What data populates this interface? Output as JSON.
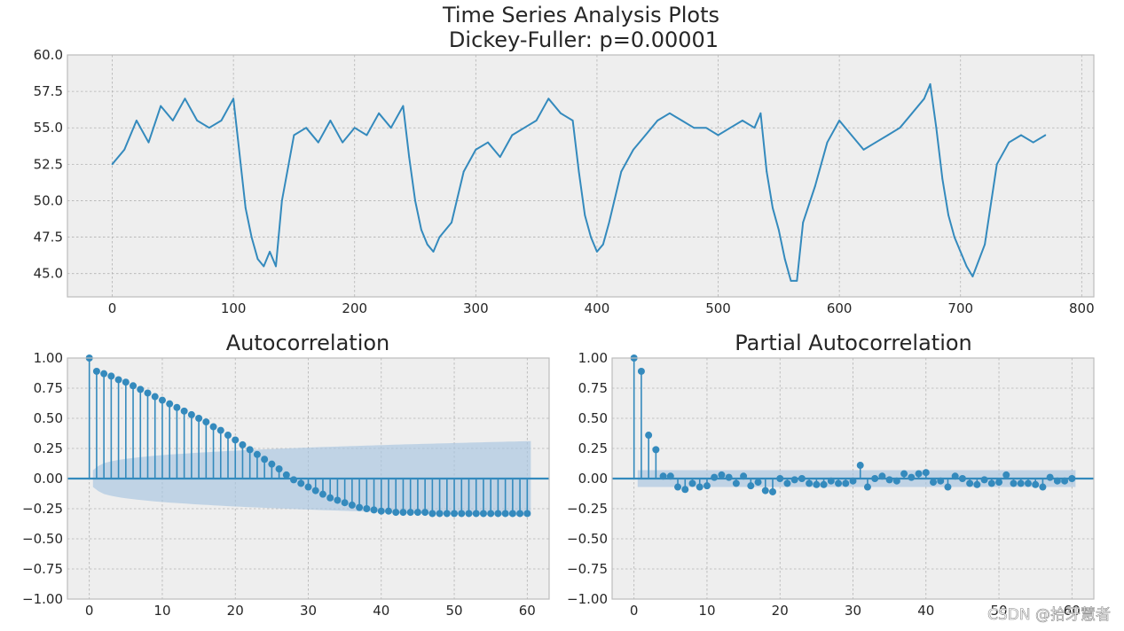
{
  "figure": {
    "suptitle_line1": "Time Series Analysis Plots",
    "suptitle_line2": "Dickey-Fuller: p=0.00001",
    "watermark": "CSDN @拾牙慧者"
  },
  "colors": {
    "line": "#348ABD",
    "axes_bg": "#EEEEEE",
    "grid": "#B2B2B2",
    "band": "#A7C5E0",
    "spine": "#BCBCBC"
  },
  "chart_data": [
    {
      "type": "line",
      "title": "",
      "xlabel": "",
      "ylabel": "",
      "xlim": [
        -37,
        810
      ],
      "ylim": [
        43.4,
        60.0
      ],
      "xticks": [
        0,
        100,
        200,
        300,
        400,
        500,
        600,
        700,
        800
      ],
      "yticks": [
        45.0,
        47.5,
        50.0,
        52.5,
        55.0,
        57.5,
        60.0
      ],
      "ytick_labels": [
        "45.0",
        "47.5",
        "50.0",
        "52.5",
        "55.0",
        "57.5",
        "60.0"
      ],
      "grid": true,
      "series": [
        {
          "x": [
            0,
            10,
            20,
            30,
            40,
            50,
            60,
            70,
            80,
            90,
            100,
            110,
            115,
            120,
            125,
            130,
            135,
            140,
            150,
            160,
            170,
            180,
            190,
            200,
            210,
            220,
            230,
            240,
            245,
            250,
            255,
            260,
            265,
            270,
            280,
            290,
            300,
            310,
            320,
            330,
            340,
            350,
            360,
            370,
            380,
            385,
            390,
            395,
            400,
            405,
            410,
            420,
            430,
            440,
            450,
            460,
            470,
            480,
            490,
            500,
            510,
            520,
            530,
            535,
            540,
            545,
            550,
            555,
            560,
            565,
            570,
            580,
            590,
            600,
            610,
            620,
            630,
            640,
            650,
            660,
            670,
            675,
            680,
            685,
            690,
            695,
            700,
            705,
            710,
            720,
            730,
            740,
            750,
            760,
            770
          ],
          "y": [
            52.5,
            53.5,
            55.5,
            54.0,
            56.5,
            55.5,
            57.0,
            55.5,
            55.0,
            55.5,
            57.0,
            49.5,
            47.5,
            46.0,
            45.5,
            46.5,
            45.5,
            50.0,
            54.5,
            55.0,
            54.0,
            55.5,
            54.0,
            55.0,
            54.5,
            56.0,
            55.0,
            56.5,
            53.0,
            50.0,
            48.0,
            47.0,
            46.5,
            47.5,
            48.5,
            52.0,
            53.5,
            54.0,
            53.0,
            54.5,
            55.0,
            55.5,
            57.0,
            56.0,
            55.5,
            52.0,
            49.0,
            47.5,
            46.5,
            47.0,
            48.5,
            52.0,
            53.5,
            54.5,
            55.5,
            56.0,
            55.5,
            55.0,
            55.0,
            54.5,
            55.0,
            55.5,
            55.0,
            56.0,
            52.0,
            49.5,
            48.0,
            46.0,
            44.5,
            44.5,
            48.5,
            51.0,
            54.0,
            55.5,
            54.5,
            53.5,
            54.0,
            54.5,
            55.0,
            56.0,
            57.0,
            58.0,
            55.0,
            51.5,
            49.0,
            47.5,
            46.5,
            45.5,
            44.8,
            47.0,
            52.5,
            54.0,
            54.5,
            54.0,
            54.5
          ]
        }
      ]
    },
    {
      "type": "stem",
      "title": "Autocorrelation",
      "xlabel": "",
      "ylabel": "",
      "xlim": [
        -3,
        63
      ],
      "ylim": [
        -1.0,
        1.0
      ],
      "xticks": [
        0,
        10,
        20,
        30,
        40,
        50,
        60
      ],
      "yticks": [
        -1.0,
        -0.75,
        -0.5,
        -0.25,
        0.0,
        0.25,
        0.5,
        0.75,
        1.0
      ],
      "ytick_labels": [
        "−1.00",
        "−0.75",
        "−0.50",
        "−0.25",
        "0.00",
        "0.25",
        "0.50",
        "0.75",
        "1.00"
      ],
      "grid": true,
      "confidence_band_lag1": 0.07,
      "confidence_band_lag60": 0.31,
      "series": [
        {
          "x": [
            0,
            1,
            2,
            3,
            4,
            5,
            6,
            7,
            8,
            9,
            10,
            11,
            12,
            13,
            14,
            15,
            16,
            17,
            18,
            19,
            20,
            21,
            22,
            23,
            24,
            25,
            26,
            27,
            28,
            29,
            30,
            31,
            32,
            33,
            34,
            35,
            36,
            37,
            38,
            39,
            40,
            41,
            42,
            43,
            44,
            45,
            46,
            47,
            48,
            49,
            50,
            51,
            52,
            53,
            54,
            55,
            56,
            57,
            58,
            59,
            60
          ],
          "y": [
            1.0,
            0.89,
            0.87,
            0.85,
            0.82,
            0.8,
            0.77,
            0.74,
            0.71,
            0.68,
            0.65,
            0.62,
            0.59,
            0.56,
            0.53,
            0.5,
            0.47,
            0.43,
            0.4,
            0.36,
            0.32,
            0.28,
            0.24,
            0.2,
            0.16,
            0.12,
            0.08,
            0.03,
            -0.01,
            -0.04,
            -0.07,
            -0.1,
            -0.13,
            -0.16,
            -0.18,
            -0.2,
            -0.22,
            -0.24,
            -0.25,
            -0.26,
            -0.27,
            -0.27,
            -0.28,
            -0.28,
            -0.28,
            -0.28,
            -0.28,
            -0.29,
            -0.29,
            -0.29,
            -0.29,
            -0.29,
            -0.29,
            -0.29,
            -0.29,
            -0.29,
            -0.29,
            -0.29,
            -0.29,
            -0.29,
            -0.29
          ]
        }
      ]
    },
    {
      "type": "stem",
      "title": "Partial Autocorrelation",
      "xlabel": "",
      "ylabel": "",
      "xlim": [
        -3,
        63
      ],
      "ylim": [
        -1.0,
        1.0
      ],
      "xticks": [
        0,
        10,
        20,
        30,
        40,
        50,
        60
      ],
      "yticks": [
        -1.0,
        -0.75,
        -0.5,
        -0.25,
        0.0,
        0.25,
        0.5,
        0.75,
        1.0
      ],
      "ytick_labels": [
        "−1.00",
        "−0.75",
        "−0.50",
        "−0.25",
        "0.00",
        "0.25",
        "0.50",
        "0.75",
        "1.00"
      ],
      "grid": true,
      "confidence_band": 0.07,
      "series": [
        {
          "x": [
            0,
            1,
            2,
            3,
            4,
            5,
            6,
            7,
            8,
            9,
            10,
            11,
            12,
            13,
            14,
            15,
            16,
            17,
            18,
            19,
            20,
            21,
            22,
            23,
            24,
            25,
            26,
            27,
            28,
            29,
            30,
            31,
            32,
            33,
            34,
            35,
            36,
            37,
            38,
            39,
            40,
            41,
            42,
            43,
            44,
            45,
            46,
            47,
            48,
            49,
            50,
            51,
            52,
            53,
            54,
            55,
            56,
            57,
            58,
            59,
            60
          ],
          "y": [
            1.0,
            0.89,
            0.36,
            0.24,
            0.02,
            0.02,
            -0.07,
            -0.09,
            -0.04,
            -0.07,
            -0.06,
            0.01,
            0.03,
            0.01,
            -0.04,
            0.02,
            -0.06,
            -0.03,
            -0.1,
            -0.11,
            0.0,
            -0.04,
            -0.01,
            0.0,
            -0.04,
            -0.05,
            -0.05,
            -0.02,
            -0.04,
            -0.04,
            -0.02,
            0.11,
            -0.07,
            0.0,
            0.02,
            -0.01,
            -0.02,
            0.04,
            0.01,
            0.04,
            0.05,
            -0.03,
            -0.02,
            -0.07,
            0.02,
            0.0,
            -0.04,
            -0.05,
            -0.01,
            -0.04,
            -0.03,
            0.03,
            -0.04,
            -0.04,
            -0.04,
            -0.05,
            -0.07,
            0.01,
            -0.02,
            -0.02,
            0.0
          ]
        }
      ]
    }
  ]
}
